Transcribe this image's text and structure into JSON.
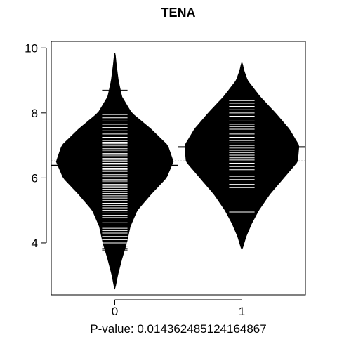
{
  "chart_data": {
    "type": "beanplot",
    "title": "TENA",
    "xlabel": "P-value: 0.014362485124164867",
    "ylabel": "",
    "categories": [
      "0",
      "1"
    ],
    "xlim": [
      -0.5,
      1.5
    ],
    "ylim": [
      2.4,
      10.2
    ],
    "yticks": [
      4,
      6,
      8,
      10
    ],
    "overall_mean": 6.52,
    "grid": false,
    "legend": "none",
    "colors": {
      "bean_fill": "#000000",
      "beanline": "#ffffff",
      "mean_line": "#000000",
      "axis": "#000000"
    },
    "series": [
      {
        "category": "0",
        "mean": 6.38,
        "density": [
          [
            2.6,
            0.002
          ],
          [
            3.0,
            0.02
          ],
          [
            3.5,
            0.05
          ],
          [
            4.0,
            0.085
          ],
          [
            4.5,
            0.11
          ],
          [
            5.0,
            0.16
          ],
          [
            5.5,
            0.26
          ],
          [
            6.0,
            0.37
          ],
          [
            6.5,
            0.42
          ],
          [
            7.0,
            0.38
          ],
          [
            7.5,
            0.26
          ],
          [
            8.0,
            0.12
          ],
          [
            8.5,
            0.05
          ],
          [
            9.0,
            0.025
          ],
          [
            9.5,
            0.01
          ],
          [
            9.85,
            0.002
          ]
        ],
        "observations": [
          3.78,
          3.83,
          3.9,
          4.0,
          4.1,
          4.2,
          4.3,
          4.38,
          4.45,
          4.55,
          4.62,
          4.7,
          4.78,
          4.85,
          4.92,
          5.0,
          5.08,
          5.15,
          5.22,
          5.3,
          5.38,
          5.45,
          5.52,
          5.58,
          5.65,
          5.7,
          5.75,
          5.8,
          5.85,
          5.9,
          5.95,
          6.0,
          6.05,
          6.1,
          6.15,
          6.2,
          6.25,
          6.3,
          6.35,
          6.4,
          6.45,
          6.5,
          6.55,
          6.6,
          6.65,
          6.7,
          6.75,
          6.8,
          6.85,
          6.9,
          6.95,
          7.0,
          7.05,
          7.1,
          7.15,
          7.25,
          7.35,
          7.45,
          7.55,
          7.65,
          7.75,
          7.85,
          7.95,
          8.7
        ]
      },
      {
        "category": "1",
        "mean": 6.95,
        "density": [
          [
            3.8,
            0.002
          ],
          [
            4.2,
            0.03
          ],
          [
            4.6,
            0.07
          ],
          [
            5.0,
            0.12
          ],
          [
            5.5,
            0.2
          ],
          [
            6.0,
            0.3
          ],
          [
            6.5,
            0.4
          ],
          [
            7.0,
            0.41
          ],
          [
            7.5,
            0.34
          ],
          [
            8.0,
            0.24
          ],
          [
            8.5,
            0.13
          ],
          [
            9.0,
            0.04
          ],
          [
            9.3,
            0.015
          ],
          [
            9.55,
            0.002
          ]
        ],
        "observations": [
          4.95,
          5.7,
          5.8,
          5.95,
          6.05,
          6.15,
          6.25,
          6.35,
          6.45,
          6.55,
          6.62,
          6.7,
          6.78,
          6.85,
          6.92,
          7.0,
          7.08,
          7.15,
          7.25,
          7.35,
          7.5,
          7.58,
          7.65,
          7.75,
          7.9,
          8.0,
          8.1,
          8.2,
          8.3,
          8.38
        ]
      }
    ]
  }
}
